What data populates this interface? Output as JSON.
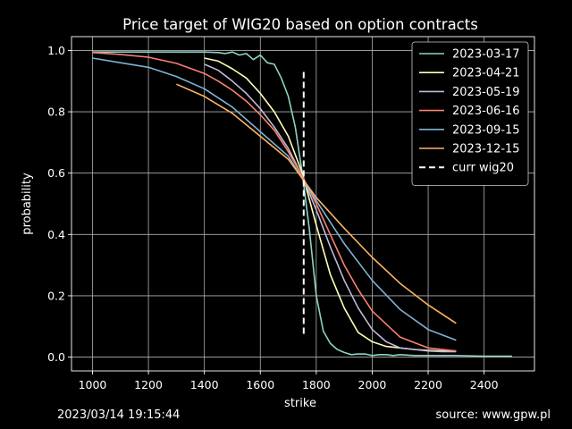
{
  "chart_data": {
    "type": "line",
    "title": "Price target of WIG20 based on option contracts",
    "xlabel": "strike",
    "ylabel": "probability",
    "xlim": [
      925,
      2580
    ],
    "ylim": [
      -0.045,
      1.045
    ],
    "xticks": [
      1000,
      1200,
      1400,
      1600,
      1800,
      2000,
      2200,
      2400
    ],
    "yticks": [
      0.0,
      0.2,
      0.4,
      0.6,
      0.8,
      1.0
    ],
    "grid": true,
    "legend_position": "top-right",
    "series": [
      {
        "name": "2023-03-17",
        "color": "#8dd3c7",
        "x": [
          1000,
          1100,
          1200,
          1300,
          1400,
          1450,
          1475,
          1500,
          1525,
          1550,
          1575,
          1600,
          1625,
          1650,
          1675,
          1700,
          1725,
          1750,
          1775,
          1800,
          1825,
          1850,
          1875,
          1900,
          1925,
          1950,
          1975,
          2000,
          2025,
          2050,
          2075,
          2100,
          2150,
          2200,
          2250,
          2300,
          2400,
          2500
        ],
        "y": [
          0.995,
          0.995,
          0.995,
          0.995,
          0.995,
          0.993,
          0.99,
          0.995,
          0.985,
          0.99,
          0.97,
          0.985,
          0.96,
          0.955,
          0.91,
          0.85,
          0.75,
          0.6,
          0.42,
          0.2,
          0.085,
          0.045,
          0.025,
          0.015,
          0.008,
          0.01,
          0.01,
          0.005,
          0.008,
          0.008,
          0.005,
          0.008,
          0.005,
          0.005,
          0.005,
          0.005,
          0.003,
          0.003
        ]
      },
      {
        "name": "2023-04-21",
        "color": "#ffffb3",
        "x": [
          1400,
          1450,
          1500,
          1550,
          1600,
          1650,
          1700,
          1750,
          1800,
          1850,
          1900,
          1950,
          2000,
          2050,
          2100,
          2150,
          2200,
          2250,
          2300
        ],
        "y": [
          0.975,
          0.965,
          0.94,
          0.91,
          0.86,
          0.8,
          0.72,
          0.6,
          0.43,
          0.27,
          0.16,
          0.08,
          0.05,
          0.035,
          0.03,
          0.025,
          0.022,
          0.02,
          0.02
        ]
      },
      {
        "name": "2023-05-19",
        "color": "#bebada",
        "x": [
          1400,
          1450,
          1500,
          1550,
          1600,
          1650,
          1700,
          1750,
          1800,
          1850,
          1900,
          1950,
          2000,
          2050,
          2100,
          2150,
          2200,
          2250,
          2300
        ],
        "y": [
          0.955,
          0.935,
          0.9,
          0.86,
          0.81,
          0.75,
          0.68,
          0.59,
          0.48,
          0.36,
          0.25,
          0.16,
          0.09,
          0.05,
          0.03,
          0.025,
          0.02,
          0.018,
          0.018
        ]
      },
      {
        "name": "2023-06-16",
        "color": "#fb8072",
        "x": [
          1000,
          1100,
          1200,
          1300,
          1400,
          1450,
          1500,
          1550,
          1600,
          1650,
          1700,
          1750,
          1800,
          1850,
          1900,
          1950,
          2000,
          2100,
          2200,
          2300
        ],
        "y": [
          0.993,
          0.987,
          0.978,
          0.958,
          0.925,
          0.9,
          0.87,
          0.835,
          0.79,
          0.74,
          0.67,
          0.59,
          0.5,
          0.4,
          0.3,
          0.22,
          0.15,
          0.065,
          0.03,
          0.02
        ]
      },
      {
        "name": "2023-09-15",
        "color": "#80b1d3",
        "x": [
          1000,
          1100,
          1200,
          1300,
          1400,
          1500,
          1600,
          1700,
          1800,
          1900,
          2000,
          2100,
          2200,
          2300
        ],
        "y": [
          0.975,
          0.96,
          0.945,
          0.915,
          0.875,
          0.815,
          0.735,
          0.655,
          0.51,
          0.37,
          0.25,
          0.155,
          0.09,
          0.055
        ]
      },
      {
        "name": "2023-12-15",
        "color": "#fdb462",
        "x": [
          1300,
          1400,
          1500,
          1600,
          1700,
          1800,
          1900,
          2000,
          2100,
          2200,
          2300
        ],
        "y": [
          0.89,
          0.85,
          0.795,
          0.72,
          0.645,
          0.52,
          0.42,
          0.325,
          0.24,
          0.17,
          0.11
        ]
      },
      {
        "name": "curr wig20",
        "color": "#ffffff",
        "dashed": true,
        "x": [
          1755,
          1755
        ],
        "y": [
          0.93,
          0.065
        ]
      }
    ]
  },
  "footer": {
    "timestamp": "2023/03/14 19:15:44",
    "source": "source: www.gpw.pl"
  }
}
